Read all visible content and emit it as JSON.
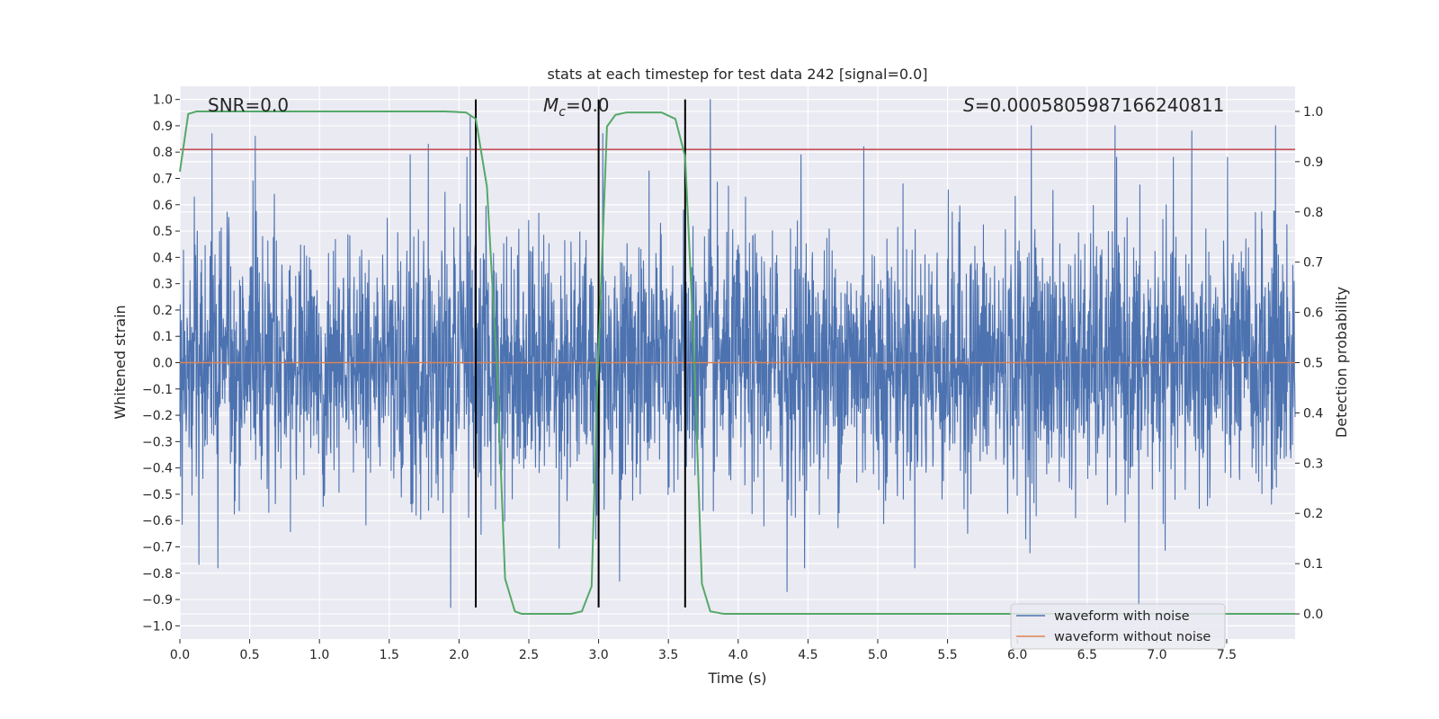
{
  "chart_data": {
    "type": "line",
    "title": "stats at each timestep for test data 242 [signal=0.0]",
    "xlabel": "Time (s)",
    "ylabel_left": "Whitened strain",
    "ylabel_right": "Detection probability",
    "xlim": [
      0.0,
      7.99
    ],
    "ylim_left": [
      -1.05,
      1.05
    ],
    "ylim_right": [
      -0.05,
      1.05
    ],
    "x_ticks": [
      "0.0",
      "0.5",
      "1.0",
      "1.5",
      "2.0",
      "2.5",
      "3.0",
      "3.5",
      "4.0",
      "4.5",
      "5.0",
      "5.5",
      "6.0",
      "6.5",
      "7.0",
      "7.5"
    ],
    "y_ticks_left": [
      "1.0",
      "0.9",
      "0.8",
      "0.7",
      "0.6",
      "0.5",
      "0.4",
      "0.3",
      "0.2",
      "0.1",
      "0.0",
      "−0.1",
      "−0.2",
      "−0.3",
      "−0.4",
      "−0.5",
      "−0.6",
      "−0.7",
      "−0.8",
      "−0.9",
      "−1.0"
    ],
    "y_ticks_right": [
      "1.0",
      "0.9",
      "0.8",
      "0.7",
      "0.6",
      "0.5",
      "0.4",
      "0.3",
      "0.2",
      "0.1",
      "0.0"
    ],
    "grid": true,
    "legend_placement": "lower right",
    "annotations": {
      "snr": "SNR=0.0",
      "mc_symbol": "M",
      "mc_subscript": "c",
      "mc_value": "=0.0",
      "s_symbol": "S",
      "s_value": "=0.0005805987166240811"
    },
    "series": [
      {
        "name": "waveform with noise",
        "color": "#4c72b0",
        "axis": "left",
        "description": "dense noise trace",
        "spike_peaks": [
          [
            0.23,
            0.87
          ],
          [
            0.54,
            0.86
          ],
          [
            1.65,
            0.79
          ],
          [
            1.78,
            0.83
          ],
          [
            2.08,
            0.94
          ],
          [
            3.03,
            0.87
          ],
          [
            3.8,
            1.0
          ],
          [
            4.45,
            0.79
          ],
          [
            4.9,
            0.82
          ],
          [
            6.1,
            0.9
          ],
          [
            6.7,
            0.9
          ],
          [
            7.25,
            0.88
          ],
          [
            7.85,
            0.9
          ],
          [
            1.94,
            -0.93
          ],
          [
            2.98,
            -0.67
          ],
          [
            3.15,
            -0.83
          ],
          [
            4.35,
            -0.87
          ],
          [
            6.87,
            -0.92
          ]
        ]
      },
      {
        "name": "waveform without noise",
        "color": "#dd8452",
        "axis": "left",
        "values": [
          [
            0.0,
            0.0
          ],
          [
            7.99,
            0.0
          ]
        ]
      },
      {
        "name": "detection probability",
        "color": "#55a868",
        "axis": "right",
        "points": [
          [
            0.0,
            0.88
          ],
          [
            0.06,
            0.995
          ],
          [
            0.12,
            1.0
          ],
          [
            1.9,
            1.0
          ],
          [
            2.05,
            0.998
          ],
          [
            2.12,
            0.985
          ],
          [
            2.2,
            0.85
          ],
          [
            2.27,
            0.5
          ],
          [
            2.33,
            0.07
          ],
          [
            2.4,
            0.005
          ],
          [
            2.45,
            0.0
          ],
          [
            2.8,
            0.0
          ],
          [
            2.88,
            0.005
          ],
          [
            2.95,
            0.055
          ],
          [
            2.99,
            0.45
          ],
          [
            3.06,
            0.97
          ],
          [
            3.12,
            0.993
          ],
          [
            3.2,
            0.998
          ],
          [
            3.45,
            0.998
          ],
          [
            3.55,
            0.985
          ],
          [
            3.62,
            0.91
          ],
          [
            3.68,
            0.55
          ],
          [
            3.74,
            0.06
          ],
          [
            3.8,
            0.005
          ],
          [
            3.9,
            0.0
          ],
          [
            7.99,
            0.0
          ]
        ]
      }
    ],
    "threshold_line": {
      "color": "#c44e52",
      "axis": "left",
      "value": 0.81
    },
    "vertical_lines": {
      "color": "#000000",
      "x": [
        2.12,
        3.0,
        3.62
      ],
      "y_range": [
        -0.93,
        1.0
      ]
    }
  }
}
